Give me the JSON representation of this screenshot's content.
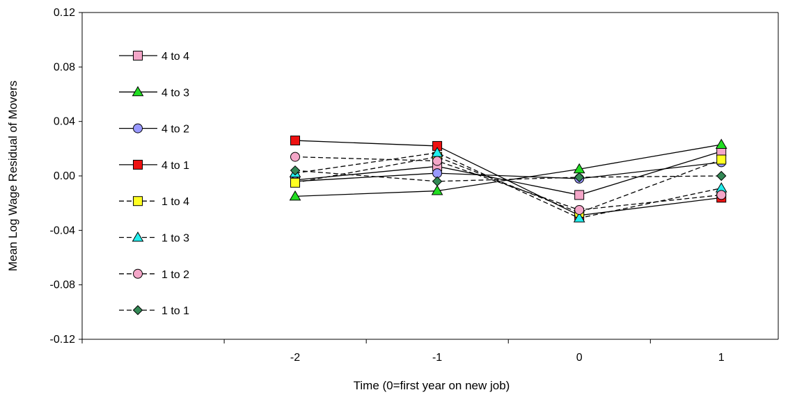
{
  "chart_data": {
    "type": "line",
    "title": "",
    "xlabel": "Time (0=first year on new job)",
    "ylabel": "Mean Log Wage Residual of Movers",
    "x": [
      -2,
      -1,
      0,
      1
    ],
    "x_tick_labels": [
      "-2",
      "-1",
      "0",
      "1"
    ],
    "ylim": [
      -0.12,
      0.12
    ],
    "y_ticks": [
      -0.12,
      -0.08,
      -0.04,
      0.0,
      0.04,
      0.08,
      0.12
    ],
    "y_tick_labels": [
      "-0.12",
      "-0.08",
      "-0.04",
      "0.00",
      "0.04",
      "0.08",
      "0.12"
    ],
    "grid": false,
    "legend_position": "left",
    "series": [
      {
        "name": "4 to 4",
        "values": [
          -0.003,
          0.007,
          -0.014,
          0.018
        ],
        "marker": "square",
        "dash": "solid",
        "color": "#f4a6c8"
      },
      {
        "name": "4 to 3",
        "values": [
          -0.015,
          -0.011,
          0.005,
          0.023
        ],
        "marker": "triangle",
        "dash": "solid",
        "color": "#22dd22"
      },
      {
        "name": "4 to 2",
        "values": [
          -0.004,
          0.002,
          -0.002,
          0.01
        ],
        "marker": "circle",
        "dash": "solid",
        "color": "#9999ff"
      },
      {
        "name": "4 to 1",
        "values": [
          0.026,
          0.022,
          -0.029,
          -0.016
        ],
        "marker": "square",
        "dash": "solid",
        "color": "#ee1111"
      },
      {
        "name": "1 to 4",
        "values": [
          -0.005,
          0.014,
          -0.027,
          0.012
        ],
        "marker": "square",
        "dash": "dashed",
        "color": "#ffff22"
      },
      {
        "name": "1 to 3",
        "values": [
          0.002,
          0.017,
          -0.031,
          -0.009
        ],
        "marker": "triangle",
        "dash": "dashed",
        "color": "#22eeee"
      },
      {
        "name": "1 to 2",
        "values": [
          0.014,
          0.011,
          -0.025,
          -0.014
        ],
        "marker": "circle",
        "dash": "dashed",
        "color": "#f4a6c8"
      },
      {
        "name": "1 to 1",
        "values": [
          0.004,
          -0.004,
          -0.001,
          0.0
        ],
        "marker": "diamond",
        "dash": "dashed",
        "color": "#338855"
      }
    ]
  }
}
